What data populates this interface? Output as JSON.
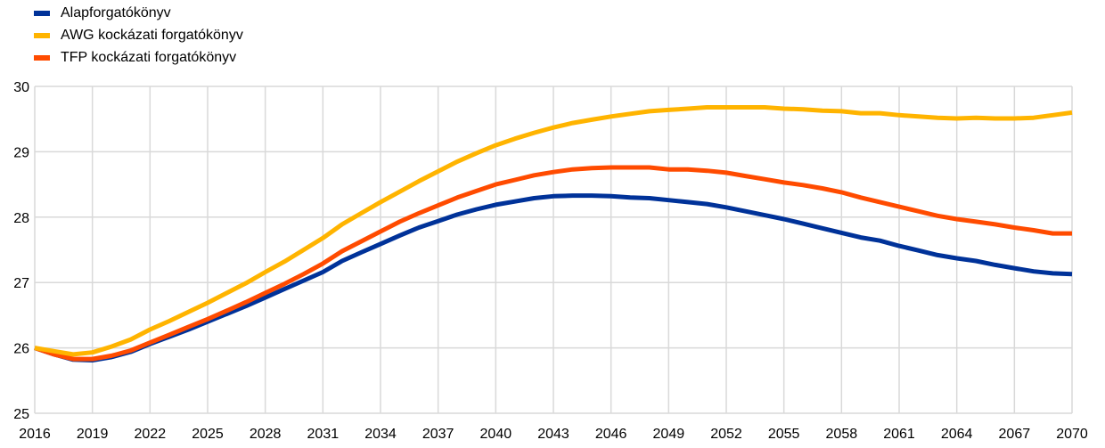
{
  "chart_data": {
    "type": "line",
    "title": "",
    "xlabel": "",
    "ylabel": "",
    "xlim": [
      2016,
      2070
    ],
    "ylim": [
      25,
      30
    ],
    "grid": true,
    "legend_position": "top-left",
    "x_ticks": [
      "2016",
      "2019",
      "2022",
      "2025",
      "2028",
      "2031",
      "2034",
      "2037",
      "2040",
      "2043",
      "2046",
      "2049",
      "2052",
      "2055",
      "2058",
      "2061",
      "2064",
      "2067",
      "2070"
    ],
    "y_ticks": [
      "25",
      "26",
      "27",
      "28",
      "29",
      "30"
    ],
    "x": [
      2016,
      2017,
      2018,
      2019,
      2020,
      2021,
      2022,
      2023,
      2024,
      2025,
      2026,
      2027,
      2028,
      2029,
      2030,
      2031,
      2032,
      2033,
      2034,
      2035,
      2036,
      2037,
      2038,
      2039,
      2040,
      2041,
      2042,
      2043,
      2044,
      2045,
      2046,
      2047,
      2048,
      2049,
      2050,
      2051,
      2052,
      2053,
      2054,
      2055,
      2056,
      2057,
      2058,
      2059,
      2060,
      2061,
      2062,
      2063,
      2064,
      2065,
      2066,
      2067,
      2068,
      2069,
      2070
    ],
    "series": [
      {
        "name": "Alapforgatókönyv",
        "color": "#003299",
        "values": [
          26.0,
          25.9,
          25.82,
          25.81,
          25.86,
          25.94,
          26.06,
          26.17,
          26.28,
          26.4,
          26.52,
          26.64,
          26.77,
          26.9,
          27.03,
          27.16,
          27.33,
          27.46,
          27.59,
          27.72,
          27.84,
          27.94,
          28.04,
          28.12,
          28.19,
          28.24,
          28.29,
          28.32,
          28.33,
          28.33,
          28.32,
          28.3,
          28.29,
          28.26,
          28.23,
          28.2,
          28.15,
          28.09,
          28.03,
          27.97,
          27.9,
          27.83,
          27.76,
          27.69,
          27.64,
          27.56,
          27.49,
          27.42,
          27.37,
          27.33,
          27.27,
          27.22,
          27.17,
          27.14,
          27.13
        ]
      },
      {
        "name": "AWG kockázati forgatókönyv",
        "color": "#FFB400",
        "values": [
          26.0,
          25.95,
          25.9,
          25.93,
          26.02,
          26.13,
          26.28,
          26.41,
          26.55,
          26.69,
          26.84,
          26.99,
          27.16,
          27.32,
          27.5,
          27.68,
          27.89,
          28.06,
          28.23,
          28.39,
          28.55,
          28.7,
          28.85,
          28.98,
          29.1,
          29.2,
          29.29,
          29.37,
          29.44,
          29.49,
          29.54,
          29.58,
          29.62,
          29.64,
          29.66,
          29.68,
          29.68,
          29.68,
          29.68,
          29.66,
          29.65,
          29.63,
          29.62,
          29.59,
          29.59,
          29.56,
          29.54,
          29.52,
          29.51,
          29.52,
          29.51,
          29.51,
          29.52,
          29.56,
          29.6
        ]
      },
      {
        "name": "TFP kockázati forgatókönyv",
        "color": "#FF4B00",
        "values": [
          26.0,
          25.9,
          25.83,
          25.83,
          25.88,
          25.96,
          26.08,
          26.2,
          26.32,
          26.44,
          26.57,
          26.7,
          26.84,
          26.98,
          27.13,
          27.29,
          27.48,
          27.63,
          27.78,
          27.93,
          28.06,
          28.18,
          28.3,
          28.4,
          28.5,
          28.57,
          28.64,
          28.69,
          28.73,
          28.75,
          28.76,
          28.76,
          28.76,
          28.73,
          28.73,
          28.71,
          28.68,
          28.63,
          28.58,
          28.53,
          28.49,
          28.44,
          28.38,
          28.3,
          28.23,
          28.16,
          28.09,
          28.02,
          27.97,
          27.93,
          27.89,
          27.84,
          27.8,
          27.75,
          27.75
        ]
      }
    ]
  }
}
